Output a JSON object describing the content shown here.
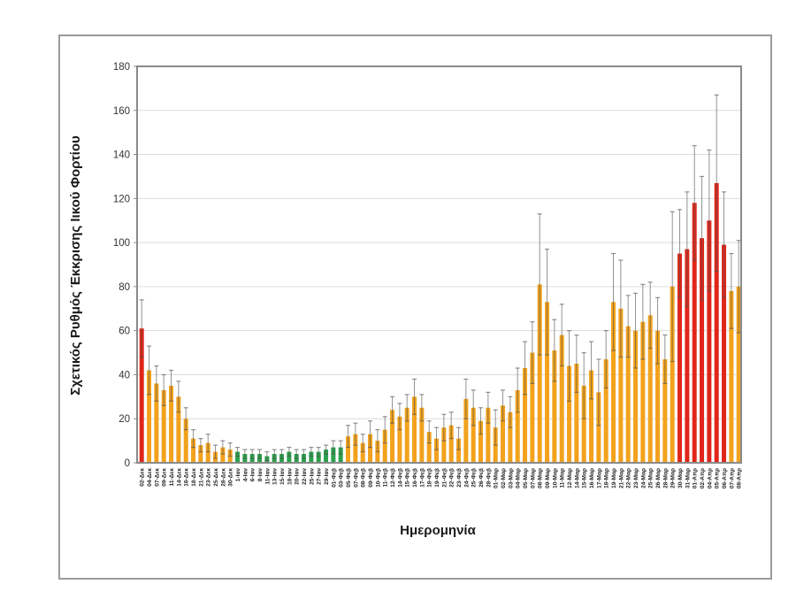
{
  "colors": {
    "orange": "#F2A21C",
    "red": "#E0261A",
    "green": "#2BA14B",
    "error": "rgba(80,80,80,0.62)",
    "grid": "#DCDCDC",
    "axis": "#8A8A8A",
    "tick_text": "#333333",
    "label_text": "#1F1F1F"
  },
  "chart_data": {
    "type": "bar",
    "title": "",
    "xlabel": "Ημερομηνία",
    "ylabel": "Σχετικός Ρυθμός Έκκρισης Ιικού Φορτίου",
    "ylim": [
      0,
      180
    ],
    "ytick_step": 20,
    "grid": true,
    "legend": false,
    "error_bars": true,
    "bars": [
      {
        "label": "02-Δεκ",
        "value": 61,
        "err": 13,
        "color": "red"
      },
      {
        "label": "04-Δεκ",
        "value": 42,
        "err": 11,
        "color": "orange"
      },
      {
        "label": "07-Δεκ",
        "value": 36,
        "err": 8,
        "color": "orange"
      },
      {
        "label": "09-Δεκ",
        "value": 33,
        "err": 7,
        "color": "orange"
      },
      {
        "label": "11-Δεκ",
        "value": 35,
        "err": 7,
        "color": "orange"
      },
      {
        "label": "14-Δεκ",
        "value": 30,
        "err": 7,
        "color": "orange"
      },
      {
        "label": "16-Δεκ",
        "value": 20,
        "err": 5,
        "color": "orange"
      },
      {
        "label": "18-Δεκ",
        "value": 11,
        "err": 4,
        "color": "orange"
      },
      {
        "label": "21-Δεκ",
        "value": 8,
        "err": 3,
        "color": "orange"
      },
      {
        "label": "23-Δεκ",
        "value": 9,
        "err": 4,
        "color": "orange"
      },
      {
        "label": "25-Δεκ",
        "value": 5,
        "err": 3,
        "color": "orange"
      },
      {
        "label": "28-Δεκ",
        "value": 7,
        "err": 3,
        "color": "orange"
      },
      {
        "label": "30-Δεκ",
        "value": 6,
        "err": 3,
        "color": "orange"
      },
      {
        "label": "1-Ιαν",
        "value": 5,
        "err": 2,
        "color": "green"
      },
      {
        "label": "4-Ιαν",
        "value": 4,
        "err": 2,
        "color": "green"
      },
      {
        "label": "6-Ιαν",
        "value": 4,
        "err": 2,
        "color": "green"
      },
      {
        "label": "8-Ιαν",
        "value": 4,
        "err": 2,
        "color": "green"
      },
      {
        "label": "11-Ιαν",
        "value": 3,
        "err": 2,
        "color": "green"
      },
      {
        "label": "13-Ιαν",
        "value": 4,
        "err": 2,
        "color": "green"
      },
      {
        "label": "15-Ιαν",
        "value": 4,
        "err": 2,
        "color": "green"
      },
      {
        "label": "18-Ιαν",
        "value": 5,
        "err": 2,
        "color": "green"
      },
      {
        "label": "20-Ιαν",
        "value": 4,
        "err": 2,
        "color": "green"
      },
      {
        "label": "22-Ιαν",
        "value": 4,
        "err": 2,
        "color": "green"
      },
      {
        "label": "25-Ιαν",
        "value": 5,
        "err": 2,
        "color": "green"
      },
      {
        "label": "27-Ιαν",
        "value": 5,
        "err": 2,
        "color": "green"
      },
      {
        "label": "29-Ιαν",
        "value": 6,
        "err": 2,
        "color": "green"
      },
      {
        "label": "01-Φεβ",
        "value": 7,
        "err": 3,
        "color": "green"
      },
      {
        "label": "03-Φεβ",
        "value": 7,
        "err": 3,
        "color": "green"
      },
      {
        "label": "05-Φεβ",
        "value": 12,
        "err": 5,
        "color": "orange"
      },
      {
        "label": "07-Φεβ",
        "value": 13,
        "err": 5,
        "color": "orange"
      },
      {
        "label": "08-Φεβ",
        "value": 9,
        "err": 4,
        "color": "orange"
      },
      {
        "label": "09-Φεβ",
        "value": 13,
        "err": 6,
        "color": "orange"
      },
      {
        "label": "10-Φεβ",
        "value": 10,
        "err": 5,
        "color": "orange"
      },
      {
        "label": "11-Φεβ",
        "value": 15,
        "err": 6,
        "color": "orange"
      },
      {
        "label": "12-Φεβ",
        "value": 24,
        "err": 6,
        "color": "orange"
      },
      {
        "label": "14-Φεβ",
        "value": 21,
        "err": 6,
        "color": "orange"
      },
      {
        "label": "15-Φεβ",
        "value": 25,
        "err": 6,
        "color": "orange"
      },
      {
        "label": "16-Φεβ",
        "value": 30,
        "err": 8,
        "color": "orange"
      },
      {
        "label": "17-Φεβ",
        "value": 25,
        "err": 6,
        "color": "orange"
      },
      {
        "label": "18-Φεβ",
        "value": 14,
        "err": 5,
        "color": "orange"
      },
      {
        "label": "19-Φεβ",
        "value": 11,
        "err": 5,
        "color": "orange"
      },
      {
        "label": "21-Φεβ",
        "value": 16,
        "err": 6,
        "color": "orange"
      },
      {
        "label": "22-Φεβ",
        "value": 17,
        "err": 6,
        "color": "orange"
      },
      {
        "label": "23-Φεβ",
        "value": 11,
        "err": 5,
        "color": "orange"
      },
      {
        "label": "24-Φεβ",
        "value": 29,
        "err": 9,
        "color": "orange"
      },
      {
        "label": "25-Φεβ",
        "value": 25,
        "err": 8,
        "color": "orange"
      },
      {
        "label": "26-Φεβ",
        "value": 19,
        "err": 6,
        "color": "orange"
      },
      {
        "label": "28-Φεβ",
        "value": 25,
        "err": 7,
        "color": "orange"
      },
      {
        "label": "01-Μαρ",
        "value": 16,
        "err": 8,
        "color": "orange"
      },
      {
        "label": "02-Μαρ",
        "value": 26,
        "err": 7,
        "color": "orange"
      },
      {
        "label": "03-Μαρ",
        "value": 23,
        "err": 7,
        "color": "orange"
      },
      {
        "label": "04-Μαρ",
        "value": 33,
        "err": 10,
        "color": "orange"
      },
      {
        "label": "05-Μαρ",
        "value": 43,
        "err": 12,
        "color": "orange"
      },
      {
        "label": "07-Μαρ",
        "value": 50,
        "err": 14,
        "color": "orange"
      },
      {
        "label": "08-Μαρ",
        "value": 81,
        "err": 32,
        "color": "orange"
      },
      {
        "label": "09-Μαρ",
        "value": 73,
        "err": 24,
        "color": "orange"
      },
      {
        "label": "10-Μαρ",
        "value": 51,
        "err": 14,
        "color": "orange"
      },
      {
        "label": "11-Μαρ",
        "value": 58,
        "err": 14,
        "color": "orange"
      },
      {
        "label": "12-Μαρ",
        "value": 44,
        "err": 16,
        "color": "orange"
      },
      {
        "label": "14-Μαρ",
        "value": 45,
        "err": 13,
        "color": "orange"
      },
      {
        "label": "15-Μαρ",
        "value": 35,
        "err": 15,
        "color": "orange"
      },
      {
        "label": "16-Μαρ",
        "value": 42,
        "err": 13,
        "color": "orange"
      },
      {
        "label": "17-Μαρ",
        "value": 32,
        "err": 15,
        "color": "orange"
      },
      {
        "label": "18-Μαρ",
        "value": 47,
        "err": 13,
        "color": "orange"
      },
      {
        "label": "19-Μαρ",
        "value": 73,
        "err": 22,
        "color": "orange"
      },
      {
        "label": "21-Μαρ",
        "value": 70,
        "err": 22,
        "color": "orange"
      },
      {
        "label": "22-Μαρ",
        "value": 62,
        "err": 14,
        "color": "orange"
      },
      {
        "label": "23-Μαρ",
        "value": 60,
        "err": 17,
        "color": "orange"
      },
      {
        "label": "24-Μαρ",
        "value": 64,
        "err": 17,
        "color": "orange"
      },
      {
        "label": "25-Μαρ",
        "value": 67,
        "err": 15,
        "color": "orange"
      },
      {
        "label": "26-Μαρ",
        "value": 60,
        "err": 15,
        "color": "orange"
      },
      {
        "label": "28-Μαρ",
        "value": 47,
        "err": 11,
        "color": "orange"
      },
      {
        "label": "29-Μαρ",
        "value": 80,
        "err": 34,
        "color": "orange"
      },
      {
        "label": "30-Μαρ",
        "value": 95,
        "err": 20,
        "color": "red"
      },
      {
        "label": "31-Μαρ",
        "value": 97,
        "err": 26,
        "color": "red"
      },
      {
        "label": "01-Απρ",
        "value": 118,
        "err": 26,
        "color": "red"
      },
      {
        "label": "02-Απρ",
        "value": 102,
        "err": 28,
        "color": "red"
      },
      {
        "label": "04-Απρ",
        "value": 110,
        "err": 32,
        "color": "red"
      },
      {
        "label": "05-Απρ",
        "value": 127,
        "err": 40,
        "color": "red"
      },
      {
        "label": "06-Απρ",
        "value": 99,
        "err": 24,
        "color": "red"
      },
      {
        "label": "07-Απρ",
        "value": 78,
        "err": 17,
        "color": "orange"
      },
      {
        "label": "08-Απρ",
        "value": 80,
        "err": 21,
        "color": "orange"
      }
    ]
  }
}
